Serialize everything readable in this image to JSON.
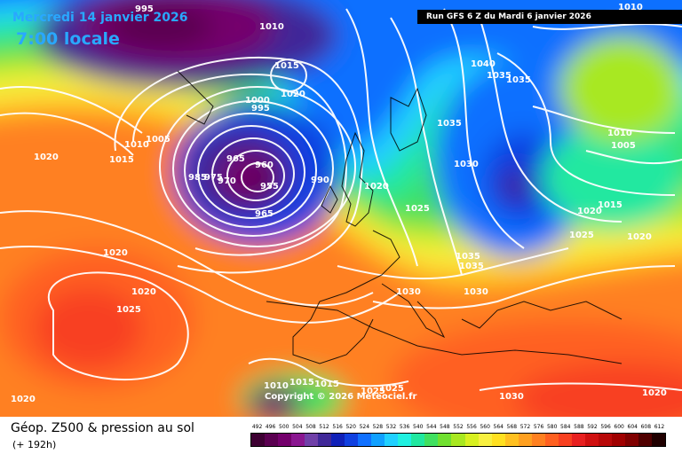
{
  "overlay": {
    "date": "Mercredi 14 janvier 2026",
    "time": "7:00 locale",
    "run_info": "Run GFS 6 Z du Mardi 6 janvier 2026",
    "copyright": "Copyright © 2026 Meteociel.fr"
  },
  "footer": {
    "title": "Géop. Z500 & pression au sol",
    "subtitle": "(+ 192h)"
  },
  "legend": {
    "labels": [
      "492",
      "496",
      "500",
      "504",
      "508",
      "512",
      "516",
      "520",
      "524",
      "528",
      "532",
      "536",
      "540",
      "544",
      "548",
      "552",
      "556",
      "560",
      "564",
      "568",
      "572",
      "576",
      "580",
      "584",
      "588",
      "592",
      "596",
      "600",
      "604",
      "608",
      "612"
    ],
    "colors": [
      "#3d0032",
      "#5a0050",
      "#74006c",
      "#8a1690",
      "#7040a8",
      "#402898",
      "#1020b8",
      "#1040e0",
      "#1070ff",
      "#10a0ff",
      "#20d0ff",
      "#20f0e0",
      "#20e8a0",
      "#40e060",
      "#70e030",
      "#a8e820",
      "#d8f020",
      "#f8f040",
      "#ffe020",
      "#ffc020",
      "#ffa020",
      "#ff8020",
      "#ff6020",
      "#f84020",
      "#e82020",
      "#d01010",
      "#b80808",
      "#a00000",
      "#800000",
      "#500000",
      "#200000"
    ]
  },
  "isobar_labels": [
    {
      "text": "995"
    },
    {
      "text": "1010"
    },
    {
      "text": "1015"
    },
    {
      "text": "1020"
    },
    {
      "text": "1000"
    },
    {
      "text": "995"
    },
    {
      "text": "1010"
    },
    {
      "text": "1005"
    },
    {
      "text": "1020"
    },
    {
      "text": "1015"
    },
    {
      "text": "965"
    },
    {
      "text": "960"
    },
    {
      "text": "985"
    },
    {
      "text": "975"
    },
    {
      "text": "970"
    },
    {
      "text": "955"
    },
    {
      "text": "965"
    },
    {
      "text": "990"
    },
    {
      "text": "1020"
    },
    {
      "text": "1025"
    },
    {
      "text": "1035"
    },
    {
      "text": "1030"
    },
    {
      "text": "1040"
    },
    {
      "text": "1035"
    },
    {
      "text": "1035"
    },
    {
      "text": "1010"
    },
    {
      "text": "1005"
    },
    {
      "text": "1020"
    },
    {
      "text": "1015"
    },
    {
      "text": "1025"
    },
    {
      "text": "1020"
    },
    {
      "text": "1035"
    },
    {
      "text": "1035"
    },
    {
      "text": "1030"
    },
    {
      "text": "1030"
    },
    {
      "text": "1020"
    },
    {
      "text": "1020"
    },
    {
      "text": "1025"
    },
    {
      "text": "1010"
    },
    {
      "text": "1015"
    },
    {
      "text": "1015"
    },
    {
      "text": "1025"
    },
    {
      "text": "1025"
    },
    {
      "text": "1020"
    },
    {
      "text": "1030"
    },
    {
      "text": "1020"
    },
    {
      "text": "1010"
    }
  ]
}
